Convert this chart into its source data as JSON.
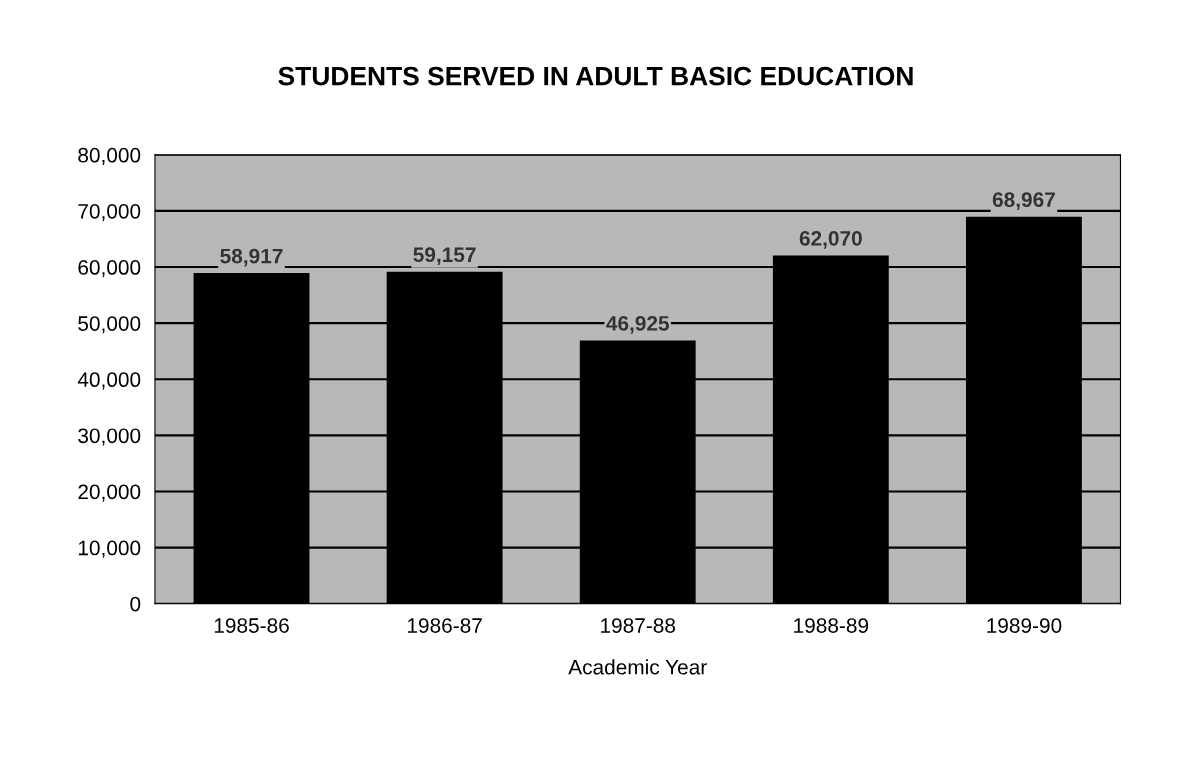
{
  "chart_data": {
    "type": "bar",
    "title": "STUDENTS SERVED IN ADULT BASIC EDUCATION",
    "xlabel": "Academic Year",
    "categories": [
      "1985-86",
      "1986-87",
      "1987-88",
      "1988-89",
      "1989-90"
    ],
    "values": [
      58917,
      59157,
      46925,
      62070,
      68967
    ],
    "value_labels": [
      "58,917",
      "59,157",
      "46,925",
      "62,070",
      "68,967"
    ],
    "color": "#000000",
    "ylim": [
      0,
      80000
    ],
    "yticks": [
      0,
      {
        "value": 10000,
        "label": "10,000"
      },
      {
        "value": 20000,
        "label": "20,000"
      },
      {
        "value": 30000,
        "label": "30,000"
      },
      {
        "value": 40000,
        "label": "40,000"
      },
      {
        "value": 50000,
        "label": "50,000"
      },
      {
        "value": 60000,
        "label": "60,000"
      },
      {
        "value": 70000,
        "label": "70,000"
      },
      {
        "value": 80000,
        "label": "80,000"
      }
    ],
    "grid": "y"
  }
}
